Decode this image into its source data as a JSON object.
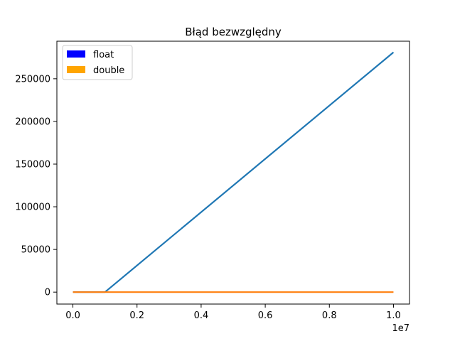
{
  "chart_data": {
    "type": "line",
    "title": "Błąd bezwzględny",
    "xlabel": "",
    "ylabel": "",
    "x_offset_label": "1e7",
    "xlim": [
      -500000,
      10500000
    ],
    "ylim": [
      -14000,
      294000
    ],
    "x_ticks": [
      0,
      2000000,
      4000000,
      6000000,
      8000000,
      10000000
    ],
    "x_tick_labels": [
      "0.0",
      "0.2",
      "0.4",
      "0.6",
      "0.8",
      "1.0"
    ],
    "y_ticks": [
      0,
      50000,
      100000,
      150000,
      200000,
      250000
    ],
    "y_tick_labels": [
      "0",
      "50000",
      "100000",
      "150000",
      "200000",
      "250000"
    ],
    "grid": false,
    "legend_position": "upper-left",
    "legend": [
      {
        "label": "float",
        "color": "#0000ff"
      },
      {
        "label": "double",
        "color": "#ffa500"
      }
    ],
    "series": [
      {
        "color": "#1f77b4",
        "x": [
          0,
          1000000,
          10000000
        ],
        "y": [
          0,
          0,
          281000
        ]
      },
      {
        "color": "#ff7f0e",
        "x": [
          0,
          10000000
        ],
        "y": [
          0,
          0
        ]
      }
    ]
  }
}
